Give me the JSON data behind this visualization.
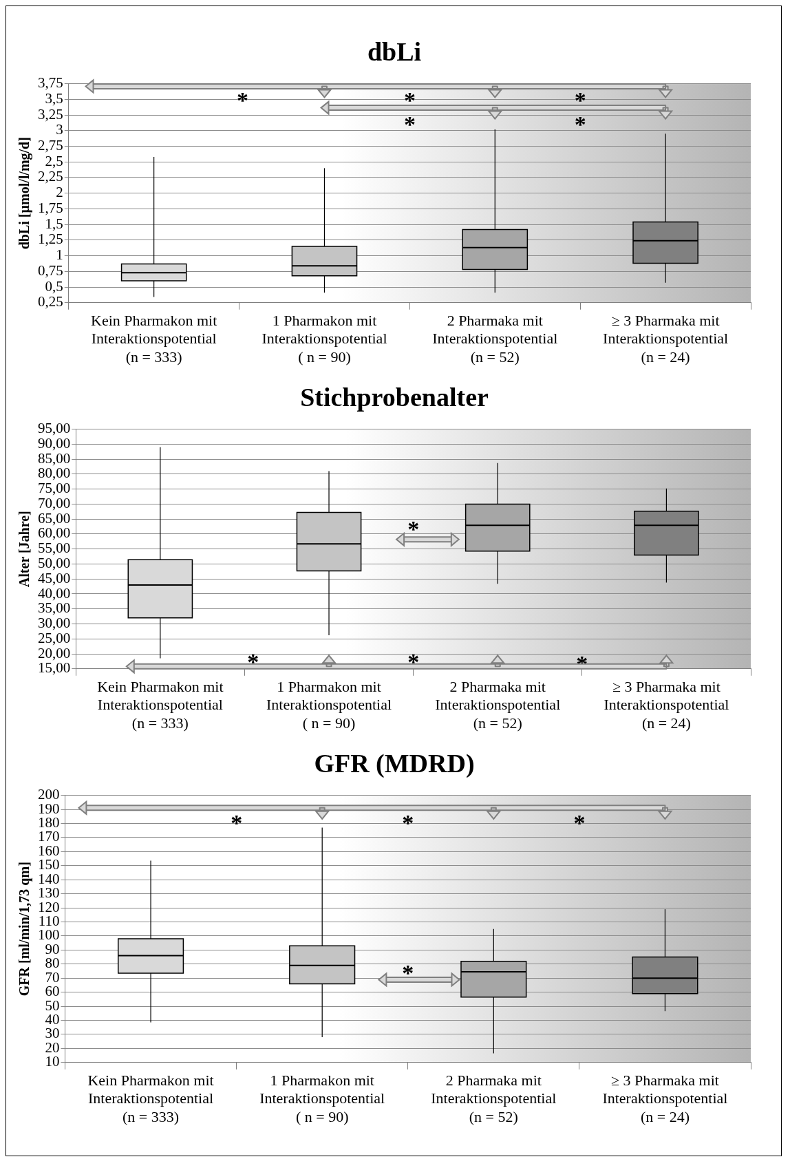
{
  "chart_data": [
    {
      "type": "box",
      "title": "dbLi",
      "ylabel": "dbLi [µmol/l/mg/d]",
      "categories": [
        "Kein Pharmakon mit\nInteraktionspotential\n(n = 333)",
        "1 Pharmakon mit\nInteraktionspotential\n( n = 90)",
        "2 Pharmaka mit\nInteraktionspotential\n(n = 52)",
        "≥ 3 Pharmaka mit\nInteraktionspotential\n(n = 24)"
      ],
      "boxes": [
        {
          "low": 0.34,
          "q1": 0.6,
          "median": 0.73,
          "q3": 0.87,
          "high": 2.58
        },
        {
          "low": 0.41,
          "q1": 0.68,
          "median": 0.84,
          "q3": 1.15,
          "high": 2.4
        },
        {
          "low": 0.41,
          "q1": 0.78,
          "median": 1.13,
          "q3": 1.42,
          "high": 3.02
        },
        {
          "low": 0.57,
          "q1": 0.88,
          "median": 1.24,
          "q3": 1.54,
          "high": 2.95
        }
      ],
      "colors": [
        "#d9d9d9",
        "#c4c4c4",
        "#a6a6a6",
        "#808080"
      ],
      "ylim": [
        0.25,
        3.75
      ],
      "yticks": [
        {
          "value": 0.25,
          "label": "0,25"
        },
        {
          "value": 0.5,
          "label": "0,5"
        },
        {
          "value": 0.75,
          "label": "0,75"
        },
        {
          "value": 1,
          "label": "1"
        },
        {
          "value": 1.25,
          "label": "1,25"
        },
        {
          "value": 1.5,
          "label": "1,5"
        },
        {
          "value": 1.75,
          "label": "1,75"
        },
        {
          "value": 2,
          "label": "2"
        },
        {
          "value": 2.25,
          "label": "2,25"
        },
        {
          "value": 2.5,
          "label": "2,5"
        },
        {
          "value": 2.75,
          "label": "2,75"
        },
        {
          "value": 3,
          "label": "3"
        },
        {
          "value": 3.25,
          "label": "3,25"
        },
        {
          "value": 3.5,
          "label": "3,5"
        },
        {
          "value": 3.75,
          "label": "3,75"
        }
      ],
      "grid": "y",
      "annotations": [
        "*",
        "*",
        "*",
        "*",
        "*"
      ]
    },
    {
      "type": "box",
      "title": "Stichprobenalter",
      "ylabel": "Alter [Jahre]",
      "categories": [
        "Kein Pharmakon mit\nInteraktionspotential\n(n = 333)",
        "1 Pharmakon mit\nInteraktionspotential\n( n = 90)",
        "2 Pharmaka mit\nInteraktionspotential\n(n = 52)",
        "≥ 3 Pharmaka mit\nInteraktionspotential\n(n = 24)"
      ],
      "boxes": [
        {
          "low": 18.5,
          "q1": 32,
          "median": 43,
          "q3": 51.4,
          "high": 89
        },
        {
          "low": 26.2,
          "q1": 47.7,
          "median": 56.7,
          "q3": 67.2,
          "high": 81
        },
        {
          "low": 43.4,
          "q1": 54.3,
          "median": 62.9,
          "q3": 70,
          "high": 83.7
        },
        {
          "low": 43.8,
          "q1": 53,
          "median": 62.9,
          "q3": 67.6,
          "high": 75.2
        }
      ],
      "colors": [
        "#d9d9d9",
        "#c4c4c4",
        "#a6a6a6",
        "#808080"
      ],
      "ylim": [
        15,
        95
      ],
      "yticks": [
        {
          "value": 15,
          "label": "15,00"
        },
        {
          "value": 20,
          "label": "20,00"
        },
        {
          "value": 25,
          "label": "25,00"
        },
        {
          "value": 30,
          "label": "30,00"
        },
        {
          "value": 35,
          "label": "35,00"
        },
        {
          "value": 40,
          "label": "40,00"
        },
        {
          "value": 45,
          "label": "45,00"
        },
        {
          "value": 50,
          "label": "50,00"
        },
        {
          "value": 55,
          "label": "55,00"
        },
        {
          "value": 60,
          "label": "60,00"
        },
        {
          "value": 65,
          "label": "65,00"
        },
        {
          "value": 70,
          "label": "70,00"
        },
        {
          "value": 75,
          "label": "75,00"
        },
        {
          "value": 80,
          "label": "80,00"
        },
        {
          "value": 85,
          "label": "85,00"
        },
        {
          "value": 90,
          "label": "90,00"
        },
        {
          "value": 95,
          "label": "95,00"
        }
      ],
      "grid": "y",
      "annotations": [
        "*",
        "*",
        "*",
        "*"
      ]
    },
    {
      "type": "box",
      "title": "GFR (MDRD)",
      "ylabel": "GFR [ml/min/1,73 qm]",
      "categories": [
        "Kein Pharmakon mit\nInteraktionspotential\n(n = 333)",
        "1 Pharmakon mit\nInteraktionspotential\n( n = 90)",
        "2 Pharmaka mit\nInteraktionspotential\n(n = 52)",
        "≥ 3 Pharmaka mit\nInteraktionspotential\n(n = 24)"
      ],
      "boxes": [
        {
          "low": 38.5,
          "q1": 73.5,
          "median": 86,
          "q3": 98,
          "high": 153.5
        },
        {
          "low": 28,
          "q1": 66,
          "median": 79,
          "q3": 93,
          "high": 177
        },
        {
          "low": 16.5,
          "q1": 56.5,
          "median": 74.5,
          "q3": 82,
          "high": 105
        },
        {
          "low": 46.5,
          "q1": 59,
          "median": 70,
          "q3": 85,
          "high": 119
        }
      ],
      "colors": [
        "#d9d9d9",
        "#c4c4c4",
        "#a6a6a6",
        "#808080"
      ],
      "ylim": [
        10,
        200
      ],
      "yticks": [
        10,
        20,
        30,
        40,
        50,
        60,
        70,
        80,
        90,
        100,
        110,
        120,
        130,
        140,
        150,
        160,
        170,
        180,
        190,
        200
      ],
      "grid": "y",
      "annotations": [
        "*",
        "*",
        "*",
        "*"
      ]
    }
  ]
}
